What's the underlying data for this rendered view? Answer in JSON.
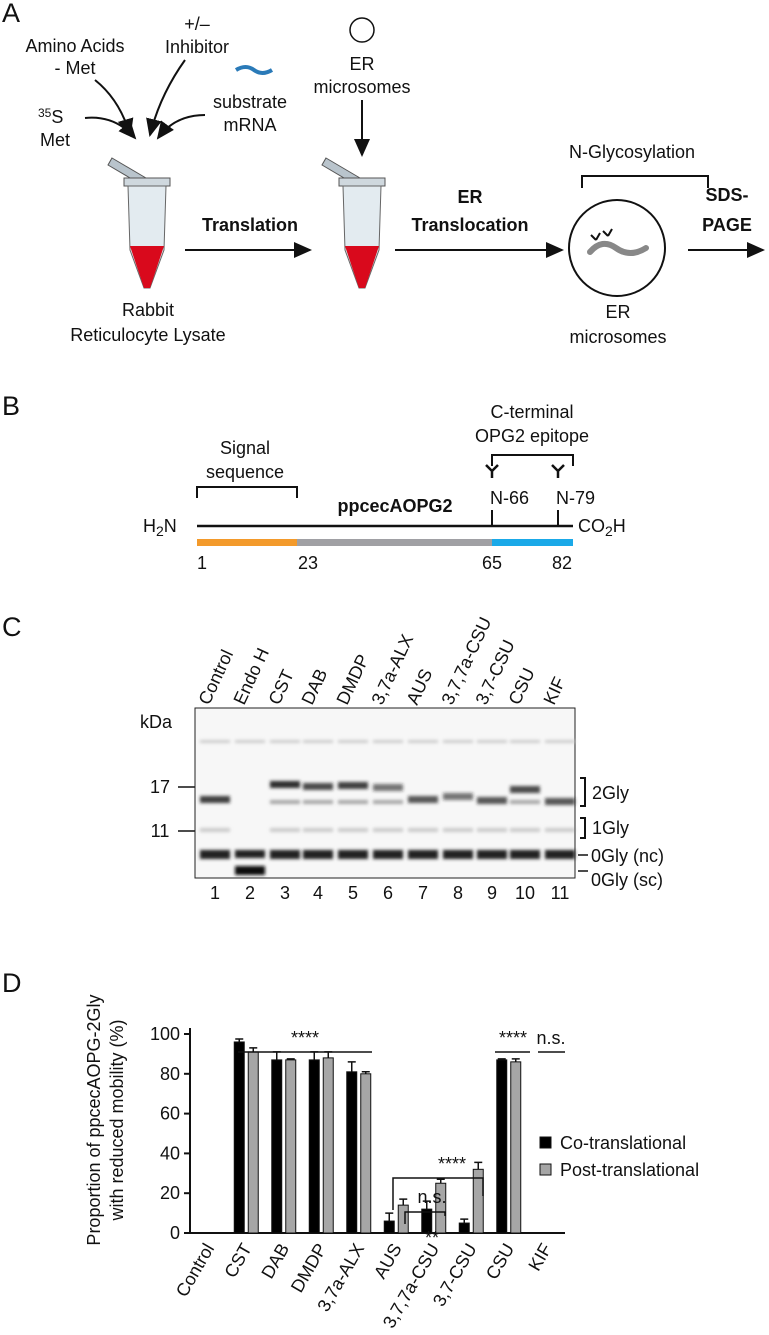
{
  "panel_a": {
    "label": "A",
    "amino_acids": [
      "Amino Acids",
      "- Met"
    ],
    "inhibitor": [
      "+/–",
      "Inhibitor"
    ],
    "mrna": [
      "substrate",
      "mRNA"
    ],
    "isotope": [
      "35",
      "S"
    ],
    "met": "Met",
    "translation": "Translation",
    "lysate": [
      "Rabbit",
      "Reticulocyte Lysate"
    ],
    "er_top": [
      "ER",
      "microsomes"
    ],
    "translocation": [
      "ER",
      "Translocation"
    ],
    "glycosylation": "N-Glycosylation",
    "sds_page": [
      "SDS-",
      "PAGE"
    ],
    "er_bottom": [
      "ER",
      "microsomes"
    ]
  },
  "panel_b": {
    "label": "B",
    "epitope": [
      "C-terminal",
      "OPG2 epitope"
    ],
    "signal": [
      "Signal",
      "sequence"
    ],
    "protein": "ppcecAOPG2",
    "n_terminus": [
      "H",
      "2",
      "N"
    ],
    "c_terminus": [
      "CO",
      "2",
      "H"
    ],
    "sites": [
      "N-66",
      "N-79"
    ],
    "positions": [
      1,
      23,
      65,
      82
    ]
  },
  "panel_c": {
    "label": "C",
    "lanes": [
      "Control",
      "Endo H",
      "CST",
      "DAB",
      "DMDP",
      "3,7a-ALX",
      "AUS",
      "3,7,7a-CSU",
      "3,7-CSU",
      "CSU",
      "KIF"
    ],
    "lane_numbers": [
      1,
      2,
      3,
      4,
      5,
      6,
      7,
      8,
      9,
      10,
      11
    ],
    "unit": "kDa",
    "markers": [
      17,
      11
    ],
    "bands": [
      "2Gly",
      "1Gly",
      "0Gly (nc)",
      "0Gly (sc)"
    ]
  },
  "chart_data": {
    "type": "bar",
    "panel_label": "D",
    "y_label": [
      "Proportion of ppcecAOPG-2Gly",
      "with reduced mobility (%)"
    ],
    "categories": [
      "Control",
      "CST",
      "DAB",
      "DMDP",
      "3,7a-ALX",
      "AUS",
      "3,7,7a-CSU",
      "3,7-CSU",
      "CSU",
      "KIF"
    ],
    "series": [
      {
        "name": "Co-translational",
        "color": "#000000",
        "values": [
          null,
          96,
          87,
          87,
          81,
          6,
          12,
          5,
          87,
          null
        ],
        "errors": [
          null,
          1.5,
          4,
          4,
          5,
          4,
          4,
          2,
          0.5,
          null
        ]
      },
      {
        "name": "Post-translational",
        "color": "#a6a6a6",
        "values": [
          null,
          91,
          87,
          88,
          80,
          14,
          25,
          32,
          86,
          null
        ],
        "errors": [
          null,
          2,
          0.5,
          3,
          1,
          3,
          2,
          3.5,
          1.5,
          null
        ]
      }
    ],
    "ylim": [
      0,
      100
    ],
    "yticks": [
      0,
      20,
      40,
      60,
      80,
      100
    ],
    "annotations": [
      "****",
      "****",
      "n.s.",
      "****",
      "n.s.",
      "**"
    ]
  }
}
